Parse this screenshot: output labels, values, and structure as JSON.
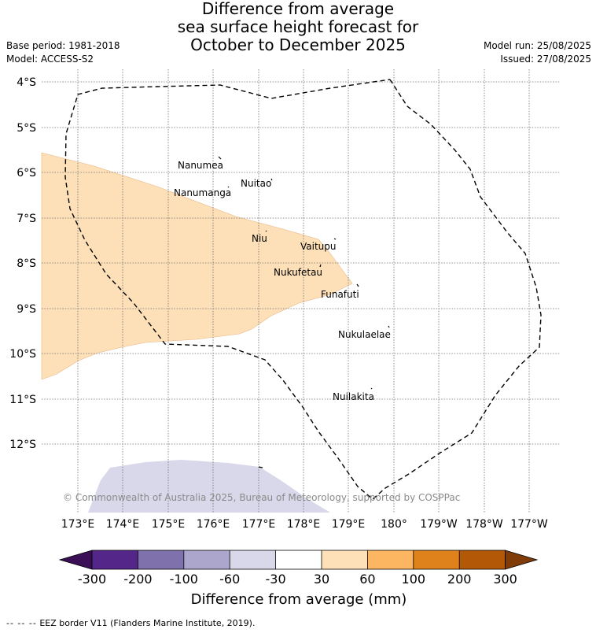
{
  "title": {
    "line1": "Difference from average",
    "line2": "sea surface height forecast for",
    "line3": "October to December 2025"
  },
  "meta": {
    "base_period": "Base period: 1981-2018",
    "model": "Model: ACCESS-S2",
    "model_run": "Model run: 25/08/2025",
    "issued": "Issued: 27/08/2025"
  },
  "map": {
    "lat_labels": [
      "4°S",
      "5°S",
      "6°S",
      "7°S",
      "8°S",
      "9°S",
      "10°S",
      "11°S",
      "12°S"
    ],
    "lon_labels": [
      "173°E",
      "174°E",
      "175°E",
      "176°E",
      "177°E",
      "178°E",
      "179°E",
      "180°",
      "179°W",
      "178°W",
      "177°W"
    ],
    "islands": [
      "Nanumea",
      "Nuitao",
      "Nanumanga",
      "Niu",
      "Vaitupu",
      "Nukufetau",
      "Funafuti",
      "Nukulaelae",
      "Nuilakita"
    ],
    "copyright": "© Commonwealth of Australia 2025, Bureau of Meteorology, supported by COSPPac",
    "fill_colors": {
      "positive_30_60": "#fde0b8",
      "negative_30_60": "#d8d8ea",
      "eez_border": "#000000"
    }
  },
  "colorbar": {
    "ticks": [
      "-300",
      "-200",
      "-100",
      "-60",
      "-30",
      "30",
      "60",
      "100",
      "200",
      "300"
    ],
    "colors": [
      "#3b0f56",
      "#542689",
      "#7f72ac",
      "#aca5cc",
      "#d8d8ea",
      "#ffffff",
      "#fde0b8",
      "#fcb662",
      "#e0821b",
      "#b35806",
      "#7f3b08"
    ],
    "label": "Difference from average (mm)"
  },
  "legend_footer": {
    "symbol": "-- -- --",
    "text": "EEZ border V11 (Flanders Marine Institute, 2019)."
  }
}
